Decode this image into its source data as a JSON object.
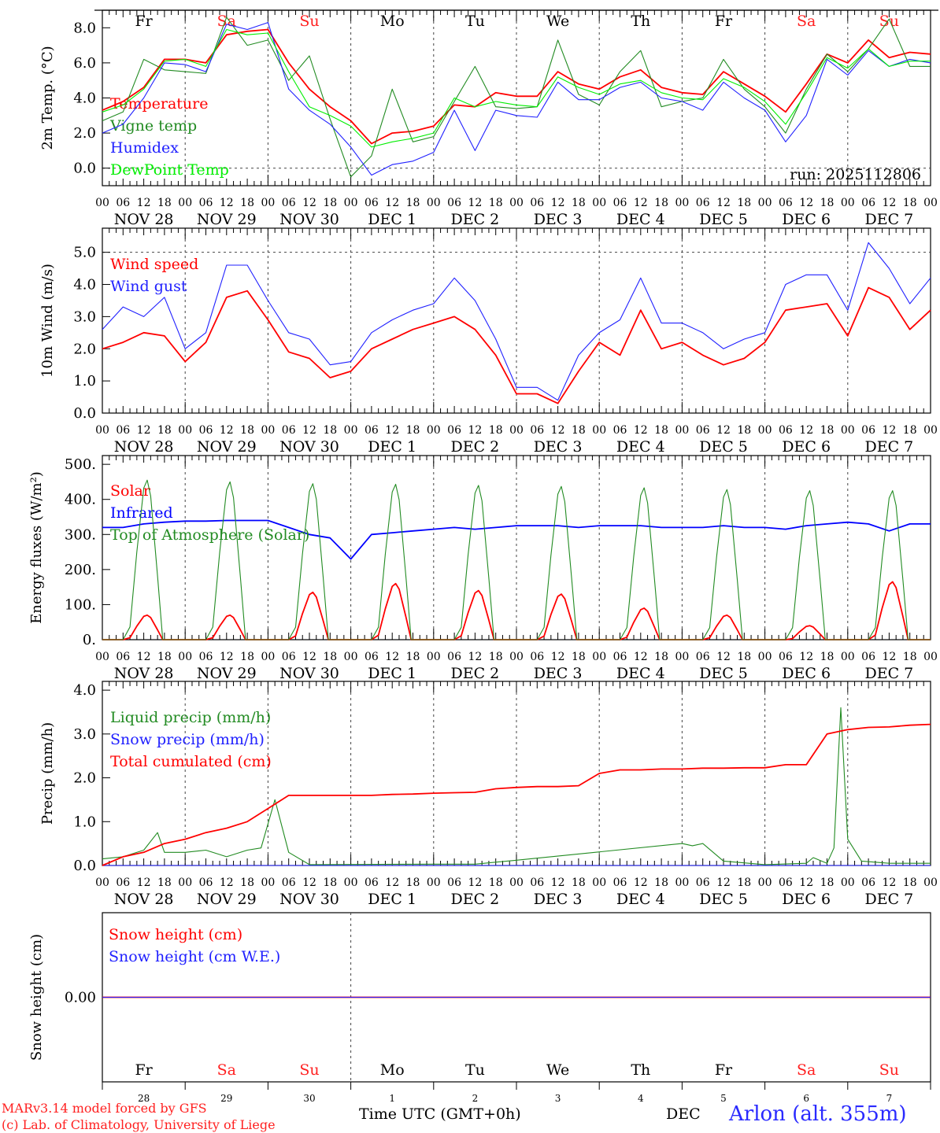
{
  "chart_data": {
    "type": "line",
    "x_units": "hours since NOV 28 00 UTC",
    "x_range": [
      0,
      240
    ],
    "x_tick_labels": [
      "00",
      "06",
      "12",
      "18"
    ],
    "date_labels": [
      "NOV 28",
      "NOV 29",
      "NOV 30",
      "DEC  1",
      "DEC  2",
      "DEC  3",
      "DEC  4",
      "DEC  5",
      "DEC  6",
      "DEC  7"
    ],
    "day_names": [
      "Fr",
      "Sa",
      "Su",
      "Mo",
      "Tu",
      "We",
      "Th",
      "Fr",
      "Sa",
      "Su"
    ],
    "day_numbers": [
      "28",
      "29",
      "30",
      "1",
      "2",
      "3",
      "4",
      "5",
      "6",
      "7"
    ],
    "weekend_color": "#ff2020",
    "panels": [
      {
        "ylabel": "2m Temp. (°C)",
        "ylim": [
          -1,
          9
        ],
        "yticks": [
          {
            "v": 0,
            "t": "0.0"
          },
          {
            "v": 2,
            "t": "2.0"
          },
          {
            "v": 4,
            "t": "4.0"
          },
          {
            "v": 6,
            "t": "6.0"
          },
          {
            "v": 8,
            "t": "8.0"
          }
        ],
        "annotation": "run: 2025112806",
        "step_hours": 6,
        "series": [
          {
            "name": "Temperature",
            "color": "#ff0000",
            "values": [
              3.3,
              3.8,
              4.6,
              6.2,
              6.2,
              6.0,
              7.6,
              7.8,
              7.9,
              6.0,
              4.5,
              3.5,
              2.7,
              1.4,
              2.0,
              2.1,
              2.4,
              3.6,
              3.5,
              4.3,
              4.1,
              4.1,
              5.5,
              4.8,
              4.5,
              5.2,
              5.6,
              4.6,
              4.3,
              4.2,
              5.5,
              4.8,
              4.1,
              3.2,
              4.8,
              6.5,
              6.0,
              7.3,
              6.3,
              6.6,
              6.5
            ]
          },
          {
            "name": "Vigne temp",
            "color": "#228b22",
            "values": [
              2.7,
              3.2,
              6.2,
              5.6,
              5.5,
              5.4,
              8.6,
              7.0,
              7.3,
              5.0,
              6.4,
              2.8,
              -0.5,
              0.7,
              4.5,
              1.5,
              1.8,
              3.8,
              5.8,
              3.5,
              3.4,
              3.5,
              7.3,
              4.2,
              3.6,
              5.5,
              6.7,
              3.5,
              3.8,
              4.0,
              6.2,
              4.5,
              3.5,
              2.0,
              4.5,
              6.5,
              5.5,
              6.8,
              8.5,
              5.8,
              5.8
            ]
          },
          {
            "name": "Humidex",
            "color": "#2020ff",
            "values": [
              2.0,
              2.5,
              4.0,
              6.0,
              5.9,
              5.5,
              8.2,
              7.9,
              8.3,
              4.5,
              3.3,
              2.5,
              1.2,
              -0.4,
              0.2,
              0.4,
              0.9,
              3.3,
              1.0,
              3.3,
              3.0,
              2.9,
              4.9,
              3.9,
              3.9,
              4.6,
              4.9,
              4.0,
              3.8,
              3.3,
              4.9,
              4.0,
              3.3,
              1.5,
              3.0,
              6.2,
              5.3,
              6.7,
              5.8,
              6.2,
              6.0
            ]
          },
          {
            "name": "DewPoint Temp",
            "color": "#00ee00",
            "values": [
              3.2,
              3.6,
              4.5,
              6.1,
              6.2,
              5.8,
              7.9,
              7.6,
              7.7,
              5.5,
              3.5,
              3.0,
              2.4,
              1.2,
              1.5,
              1.7,
              2.0,
              4.0,
              3.5,
              3.8,
              3.6,
              3.5,
              5.2,
              4.6,
              4.2,
              4.8,
              5.0,
              4.3,
              4.0,
              3.9,
              5.1,
              4.6,
              3.8,
              2.5,
              4.3,
              6.3,
              5.7,
              6.8,
              5.8,
              6.1,
              6.1
            ]
          }
        ]
      },
      {
        "ylabel": "10m Wind (m/s)",
        "ylim": [
          0,
          5.75
        ],
        "yticks": [
          {
            "v": 0,
            "t": "0.0"
          },
          {
            "v": 1,
            "t": "1.0"
          },
          {
            "v": 2,
            "t": "2.0"
          },
          {
            "v": 3,
            "t": "3.0"
          },
          {
            "v": 4,
            "t": "4.0"
          },
          {
            "v": 5,
            "t": "5.0"
          }
        ],
        "step_hours": 6,
        "series": [
          {
            "name": "Wind speed",
            "color": "#ff0000",
            "values": [
              2.0,
              2.2,
              2.5,
              2.4,
              1.6,
              2.2,
              3.6,
              3.8,
              2.9,
              1.9,
              1.7,
              1.1,
              1.3,
              2.0,
              2.3,
              2.6,
              2.8,
              3.0,
              2.6,
              1.8,
              0.6,
              0.6,
              0.3,
              1.3,
              2.2,
              1.8,
              3.2,
              2.0,
              2.2,
              1.8,
              1.5,
              1.7,
              2.2,
              3.2,
              3.3,
              3.4,
              2.4,
              3.9,
              3.6,
              2.6,
              3.2
            ]
          },
          {
            "name": "Wind gust",
            "color": "#2020ff",
            "values": [
              2.6,
              3.3,
              3.0,
              3.6,
              2.0,
              2.5,
              4.6,
              4.6,
              3.5,
              2.5,
              2.3,
              1.5,
              1.6,
              2.5,
              2.9,
              3.2,
              3.4,
              4.2,
              3.5,
              2.3,
              0.8,
              0.8,
              0.4,
              1.8,
              2.5,
              2.9,
              4.2,
              2.8,
              2.8,
              2.5,
              2.0,
              2.3,
              2.5,
              4.0,
              4.3,
              4.3,
              3.2,
              5.3,
              4.5,
              3.4,
              4.2
            ]
          }
        ]
      },
      {
        "ylabel": "Energy fluxes (W/m²)",
        "ylim": [
          0,
          525
        ],
        "yticks": [
          {
            "v": 0,
            "t": "0."
          },
          {
            "v": 100,
            "t": "100."
          },
          {
            "v": 200,
            "t": "200."
          },
          {
            "v": 300,
            "t": "300."
          },
          {
            "v": 400,
            "t": "400."
          },
          {
            "v": 500,
            "t": "500."
          }
        ],
        "step_hours": 6,
        "series": [
          {
            "name": "Solar",
            "color": "#ff0000",
            "daily_peak": [
              70,
              70,
              135,
              160,
              140,
              130,
              90,
              70,
              40,
              165
            ]
          },
          {
            "name": "Infrared",
            "color": "#0000ff",
            "values": [
              320,
              320,
              330,
              335,
              338,
              338,
              340,
              340,
              340,
              320,
              300,
              290,
              230,
              300,
              305,
              310,
              315,
              320,
              315,
              320,
              325,
              325,
              325,
              320,
              325,
              325,
              325,
              320,
              320,
              320,
              325,
              320,
              320,
              315,
              325,
              330,
              335,
              330,
              310,
              330,
              330
            ]
          },
          {
            "name": "Top of Atmosphere (Solar)",
            "color": "#228b22",
            "daily_peak": [
              455,
              450,
              445,
              443,
              440,
              437,
              433,
              428,
              425,
              425
            ]
          }
        ]
      },
      {
        "ylabel": "Precip (mm/h)",
        "ylim": [
          0,
          4.2
        ],
        "yticks": [
          {
            "v": 0,
            "t": "0.0"
          },
          {
            "v": 1,
            "t": "1.0"
          },
          {
            "v": 2,
            "t": "2.0"
          },
          {
            "v": 3,
            "t": "3.0"
          },
          {
            "v": 4,
            "t": "4.0"
          }
        ],
        "series": [
          {
            "name": "Liquid precip (mm/h)",
            "color": "#228b22",
            "x": [
              0,
              6,
              12,
              16,
              18,
              24,
              30,
              36,
              42,
              46,
              50,
              54,
              60,
              96,
              108,
              120,
              168,
              171,
              174,
              180,
              192,
              204,
              206,
              210,
              212,
              214,
              216,
              220,
              228,
              240
            ],
            "values": [
              0.15,
              0.2,
              0.35,
              0.75,
              0.3,
              0.3,
              0.35,
              0.2,
              0.35,
              0.4,
              1.5,
              0.3,
              0.02,
              0.03,
              0.03,
              0.12,
              0.5,
              0.45,
              0.5,
              0.1,
              0.02,
              0.05,
              0.18,
              0.05,
              0.4,
              3.6,
              0.6,
              0.1,
              0.05,
              0.05
            ]
          },
          {
            "name": "Snow precip (mm/h)",
            "color": "#2020ff",
            "x": [
              0,
              240
            ],
            "values": [
              0,
              0
            ]
          },
          {
            "name": "Total cumulated (cm)",
            "color": "#ff0000",
            "step_hours": 6,
            "values": [
              0,
              0.2,
              0.3,
              0.5,
              0.6,
              0.75,
              0.85,
              1.0,
              1.3,
              1.6,
              1.6,
              1.6,
              1.6,
              1.6,
              1.62,
              1.63,
              1.65,
              1.66,
              1.67,
              1.75,
              1.78,
              1.8,
              1.8,
              1.82,
              2.1,
              2.18,
              2.18,
              2.2,
              2.2,
              2.22,
              2.22,
              2.23,
              2.23,
              2.3,
              2.3,
              3.0,
              3.1,
              3.15,
              3.16,
              3.2,
              3.22
            ]
          }
        ]
      },
      {
        "ylabel": "Snow height (cm)",
        "ylim": [
          -1,
          1
        ],
        "yticks": [
          {
            "v": 0,
            "t": "0.00"
          }
        ],
        "series": [
          {
            "name": "Snow height (cm)",
            "color": "#ff0000",
            "x": [
              0,
              240
            ],
            "values": [
              0,
              0
            ]
          },
          {
            "name": "Snow height (cm W.E.)",
            "color": "#2020ff",
            "x": [
              0,
              240
            ],
            "values": [
              0,
              0
            ]
          }
        ]
      }
    ]
  },
  "footer": {
    "model": "MARv3.14 model forced by GFS",
    "credit": "(c) Lab. of Climatology, University of Liege",
    "xlabel": "Time UTC (GMT+0h)",
    "month": "DEC",
    "station": "Arlon (alt. 355m)"
  }
}
